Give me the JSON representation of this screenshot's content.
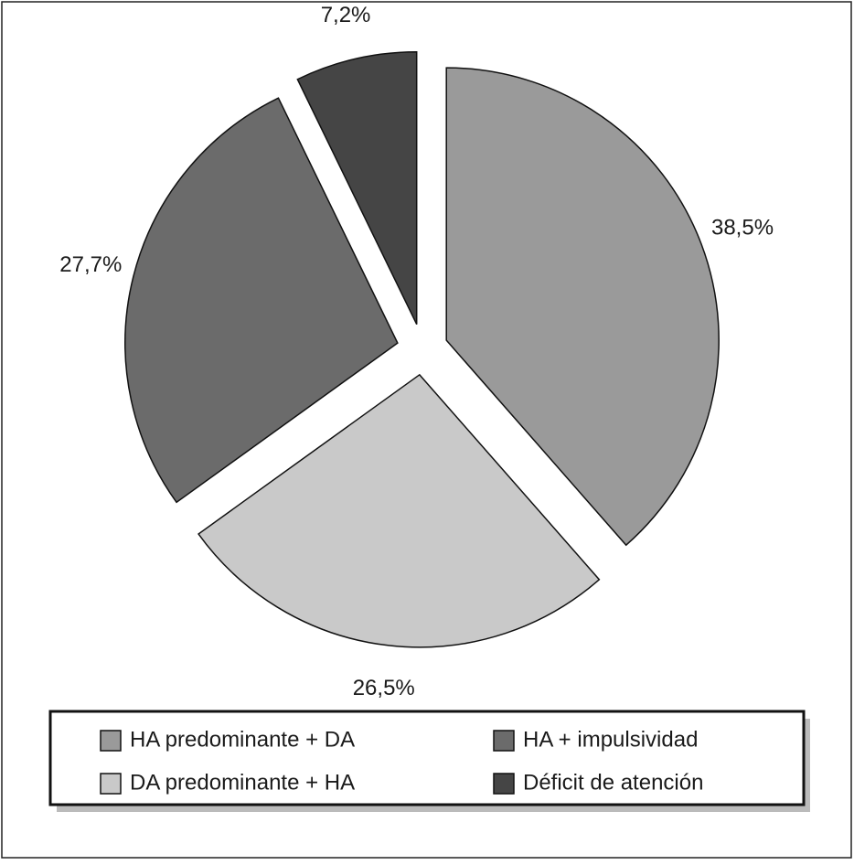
{
  "chart_data": {
    "type": "pie",
    "categories": [
      "HA predominante + DA",
      "DA predominante + HA",
      "HA + impulsividad",
      "Déficit de atención"
    ],
    "values": [
      38.5,
      26.5,
      27.7,
      7.2
    ],
    "value_labels": [
      "38,5%",
      "26,5%",
      "27,7%",
      "7,2%"
    ],
    "colors": [
      "#9a9a9a",
      "#c9c9c9",
      "#6b6b6b",
      "#454545"
    ]
  }
}
